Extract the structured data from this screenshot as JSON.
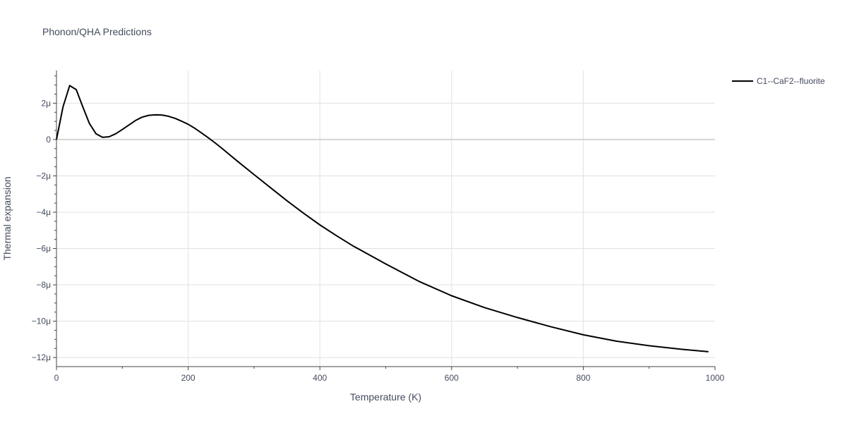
{
  "chart_data": {
    "type": "line",
    "title": "Phonon/QHA Predictions",
    "xlabel": "Temperature (K)",
    "ylabel": "Thermal expansion",
    "xlim": [
      0,
      1000
    ],
    "ylim": [
      -12.5,
      3.8
    ],
    "x_ticks": [
      0,
      200,
      400,
      600,
      800,
      1000
    ],
    "x_tick_labels": [
      "0",
      "200",
      "400",
      "600",
      "800",
      "1000"
    ],
    "y_ticks": [
      2,
      0,
      -2,
      -4,
      -6,
      -8,
      -10,
      -12
    ],
    "y_tick_labels": [
      "2μ",
      "0",
      "−2μ",
      "−4μ",
      "−6μ",
      "−8μ",
      "−10μ",
      "−12μ"
    ],
    "y_unit": "1e-6",
    "grid": true,
    "legend_position": "top-right",
    "series": [
      {
        "name": "C1--CaF2--fluorite",
        "color": "#000000",
        "x": [
          0,
          10,
          20,
          30,
          40,
          50,
          60,
          70,
          80,
          90,
          100,
          110,
          120,
          130,
          140,
          150,
          160,
          170,
          180,
          190,
          200,
          210,
          220,
          230,
          240,
          250,
          275,
          300,
          325,
          350,
          375,
          400,
          425,
          450,
          475,
          500,
          550,
          600,
          650,
          700,
          750,
          800,
          850,
          900,
          950,
          990
        ],
        "y": [
          0.0,
          1.8,
          2.97,
          2.75,
          1.8,
          0.88,
          0.32,
          0.12,
          0.15,
          0.32,
          0.55,
          0.8,
          1.05,
          1.23,
          1.33,
          1.36,
          1.35,
          1.28,
          1.17,
          1.01,
          0.84,
          0.62,
          0.37,
          0.11,
          -0.16,
          -0.45,
          -1.2,
          -1.93,
          -2.65,
          -3.37,
          -4.05,
          -4.7,
          -5.29,
          -5.85,
          -6.35,
          -6.85,
          -7.8,
          -8.6,
          -9.25,
          -9.8,
          -10.3,
          -10.75,
          -11.1,
          -11.35,
          -11.55,
          -11.68
        ]
      }
    ]
  }
}
